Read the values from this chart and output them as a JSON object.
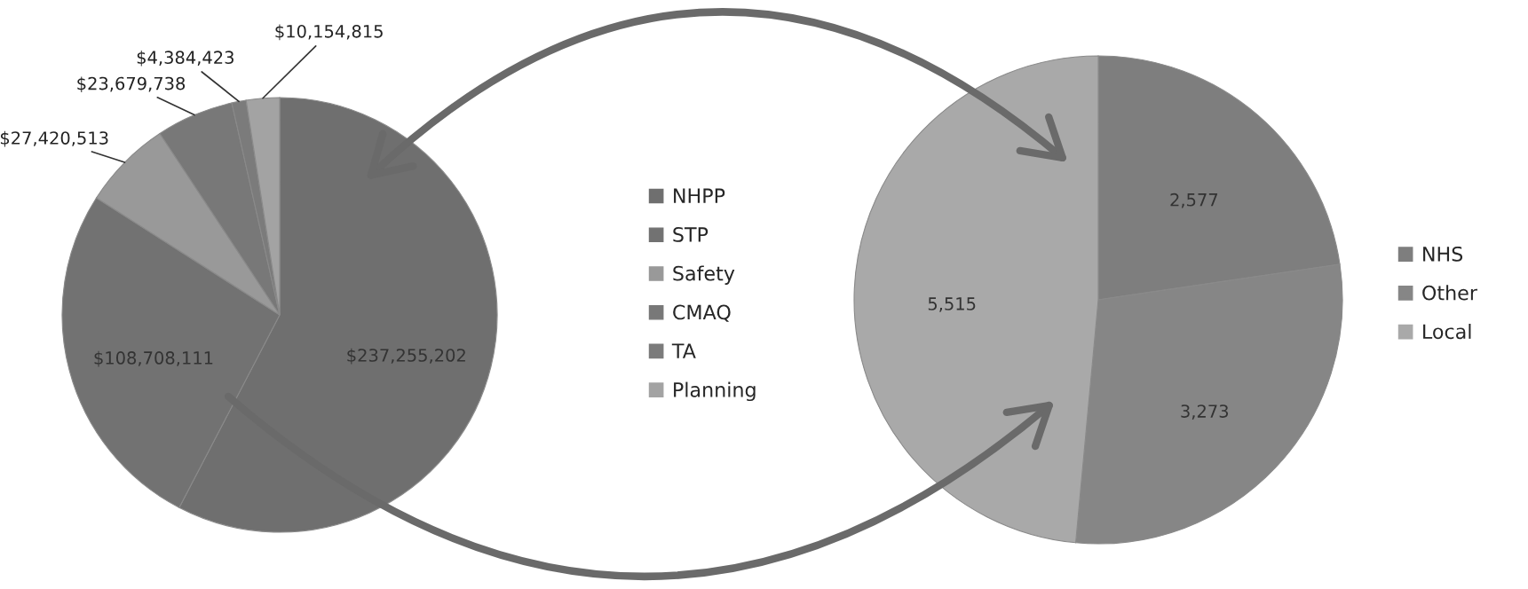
{
  "chart_data": [
    {
      "type": "pie",
      "categories": [
        "NHPP",
        "STP",
        "Safety",
        "CMAQ",
        "TA",
        "Planning"
      ],
      "values": [
        237255202,
        108708111,
        27420513,
        23679738,
        4384423,
        10154815
      ],
      "colors": [
        "#6f6f6f",
        "#727272",
        "#999999",
        "#787878",
        "#7b7b7b",
        "#a3a3a3"
      ],
      "value_labels": [
        "$237,255,202",
        "$108,708,111",
        "$27,420,513",
        "$23,679,738",
        "$4,384,423",
        "$10,154,815"
      ],
      "legend": "right"
    },
    {
      "type": "pie",
      "categories": [
        "NHS",
        "Other",
        "Local"
      ],
      "values": [
        2577,
        3273,
        5515
      ],
      "colors": [
        "#7e7e7e",
        "#868686",
        "#a9a9a9"
      ],
      "value_labels": [
        "2,577",
        "3,273",
        "5,515"
      ],
      "legend": "right"
    }
  ]
}
